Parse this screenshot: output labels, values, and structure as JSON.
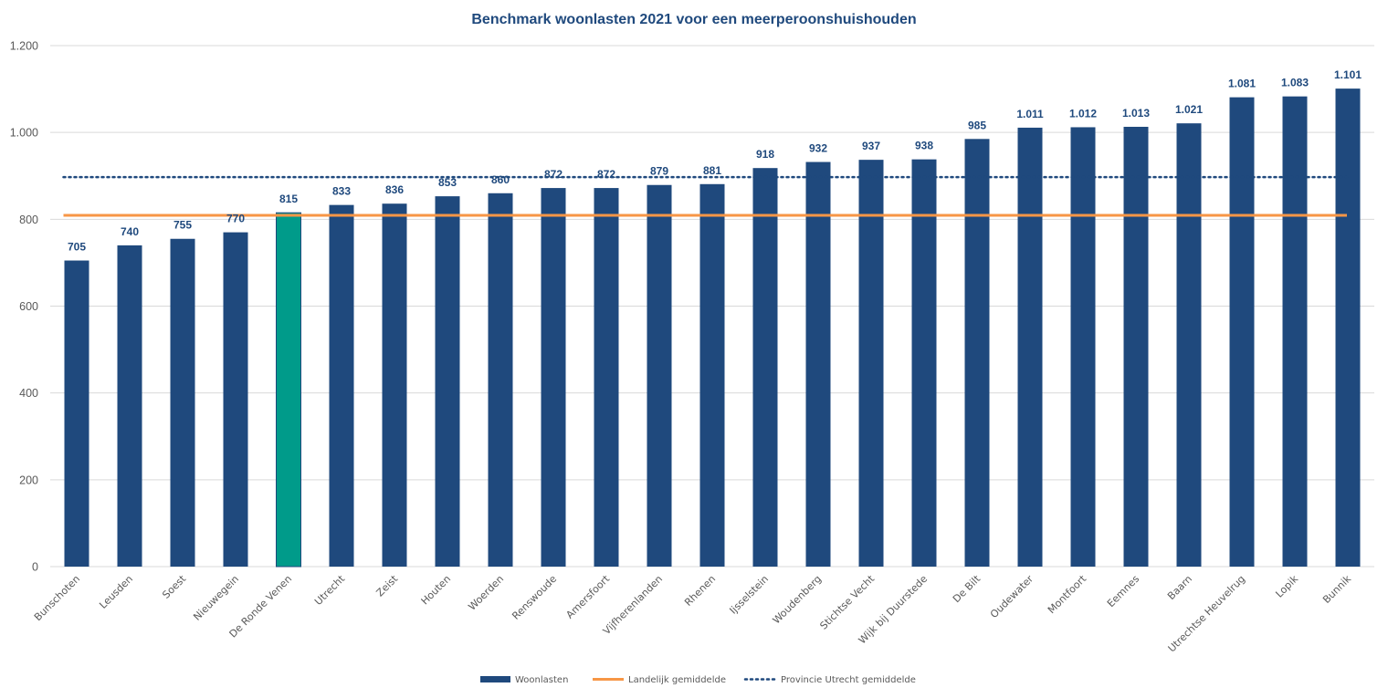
{
  "chart_data": {
    "type": "bar",
    "title": "Benchmark woonlasten 2021 voor een meerperoonshuishouden",
    "xlabel": "",
    "ylabel": "",
    "ylim": [
      0,
      1200
    ],
    "yticks": [
      0,
      200,
      400,
      600,
      800,
      1000,
      1200
    ],
    "ytick_labels": [
      "0",
      "200",
      "400",
      "600",
      "800",
      "1.000",
      "1.200"
    ],
    "grid": true,
    "categories": [
      "Bunschoten",
      "Leusden",
      "Soest",
      "Nieuwegein",
      "De Ronde Venen",
      "Utrecht",
      "Zeist",
      "Houten",
      "Woerden",
      "Renswoude",
      "Amersfoort",
      "Vijfherenlanden",
      "Rhenen",
      "Ijsselstein",
      "Woudenberg",
      "Stichtse Vecht",
      "Wijk bij Duurstede",
      "De Bilt",
      "Oudewater",
      "Montfoort",
      "Eemnes",
      "Baarn",
      "Utrechtse Heuvelrug",
      "Lopik",
      "Bunnik"
    ],
    "series": [
      {
        "name": "Woonlasten",
        "kind": "bar",
        "color": "#1f497d",
        "highlight": {
          "category": "De Ronde Venen",
          "color": "#009b8a"
        },
        "values": [
          705,
          740,
          755,
          770,
          815,
          833,
          836,
          853,
          860,
          872,
          872,
          879,
          881,
          918,
          932,
          937,
          938,
          985,
          1011,
          1012,
          1013,
          1021,
          1081,
          1083,
          1101
        ],
        "data_labels": [
          "705",
          "740",
          "755",
          "770",
          "815",
          "833",
          "836",
          "853",
          "860",
          "872",
          "872",
          "879",
          "881",
          "918",
          "932",
          "937",
          "938",
          "985",
          "1.011",
          "1.012",
          "1.013",
          "1.021",
          "1.081",
          "1.083",
          "1.101"
        ]
      },
      {
        "name": "Landelijk gemiddelde",
        "kind": "line",
        "style": "solid",
        "color": "#f79646",
        "value": 809
      },
      {
        "name": "Provincie Utrecht gemiddelde",
        "kind": "line",
        "style": "dotted",
        "color": "#1f497d",
        "value": 897
      }
    ],
    "legend": {
      "position": "bottom",
      "entries": [
        "Woonlasten",
        "Landelijk gemiddelde",
        "Provincie Utrecht gemiddelde"
      ]
    }
  }
}
